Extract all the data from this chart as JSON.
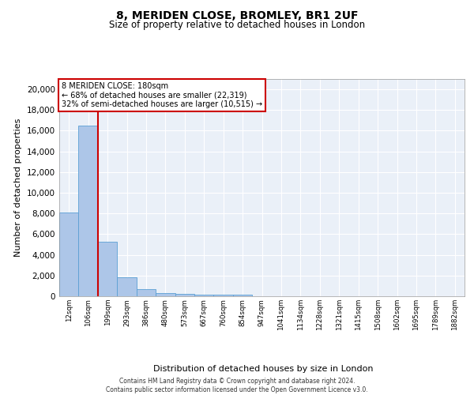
{
  "title1": "8, MERIDEN CLOSE, BROMLEY, BR1 2UF",
  "title2": "Size of property relative to detached houses in London",
  "xlabel": "Distribution of detached houses by size in London",
  "ylabel": "Number of detached properties",
  "categories": [
    "12sqm",
    "106sqm",
    "199sqm",
    "293sqm",
    "386sqm",
    "480sqm",
    "573sqm",
    "667sqm",
    "760sqm",
    "854sqm",
    "947sqm",
    "1041sqm",
    "1134sqm",
    "1228sqm",
    "1321sqm",
    "1415sqm",
    "1508sqm",
    "1602sqm",
    "1695sqm",
    "1789sqm",
    "1882sqm"
  ],
  "values": [
    8100,
    16500,
    5300,
    1850,
    700,
    310,
    230,
    190,
    160,
    130,
    0,
    0,
    0,
    0,
    0,
    0,
    0,
    0,
    0,
    0,
    0
  ],
  "bar_color": "#adc6e8",
  "bar_edge_color": "#5a9fd4",
  "red_line_index": 2,
  "annotation_title": "8 MERIDEN CLOSE: 180sqm",
  "annotation_line1": "← 68% of detached houses are smaller (22,319)",
  "annotation_line2": "32% of semi-detached houses are larger (10,515) →",
  "annotation_box_color": "#ffffff",
  "annotation_box_edge": "#cc0000",
  "ylim": [
    0,
    21000
  ],
  "yticks": [
    0,
    2000,
    4000,
    6000,
    8000,
    10000,
    12000,
    14000,
    16000,
    18000,
    20000
  ],
  "background_color": "#eaf0f8",
  "grid_color": "#ffffff",
  "footer1": "Contains HM Land Registry data © Crown copyright and database right 2024.",
  "footer2": "Contains public sector information licensed under the Open Government Licence v3.0."
}
